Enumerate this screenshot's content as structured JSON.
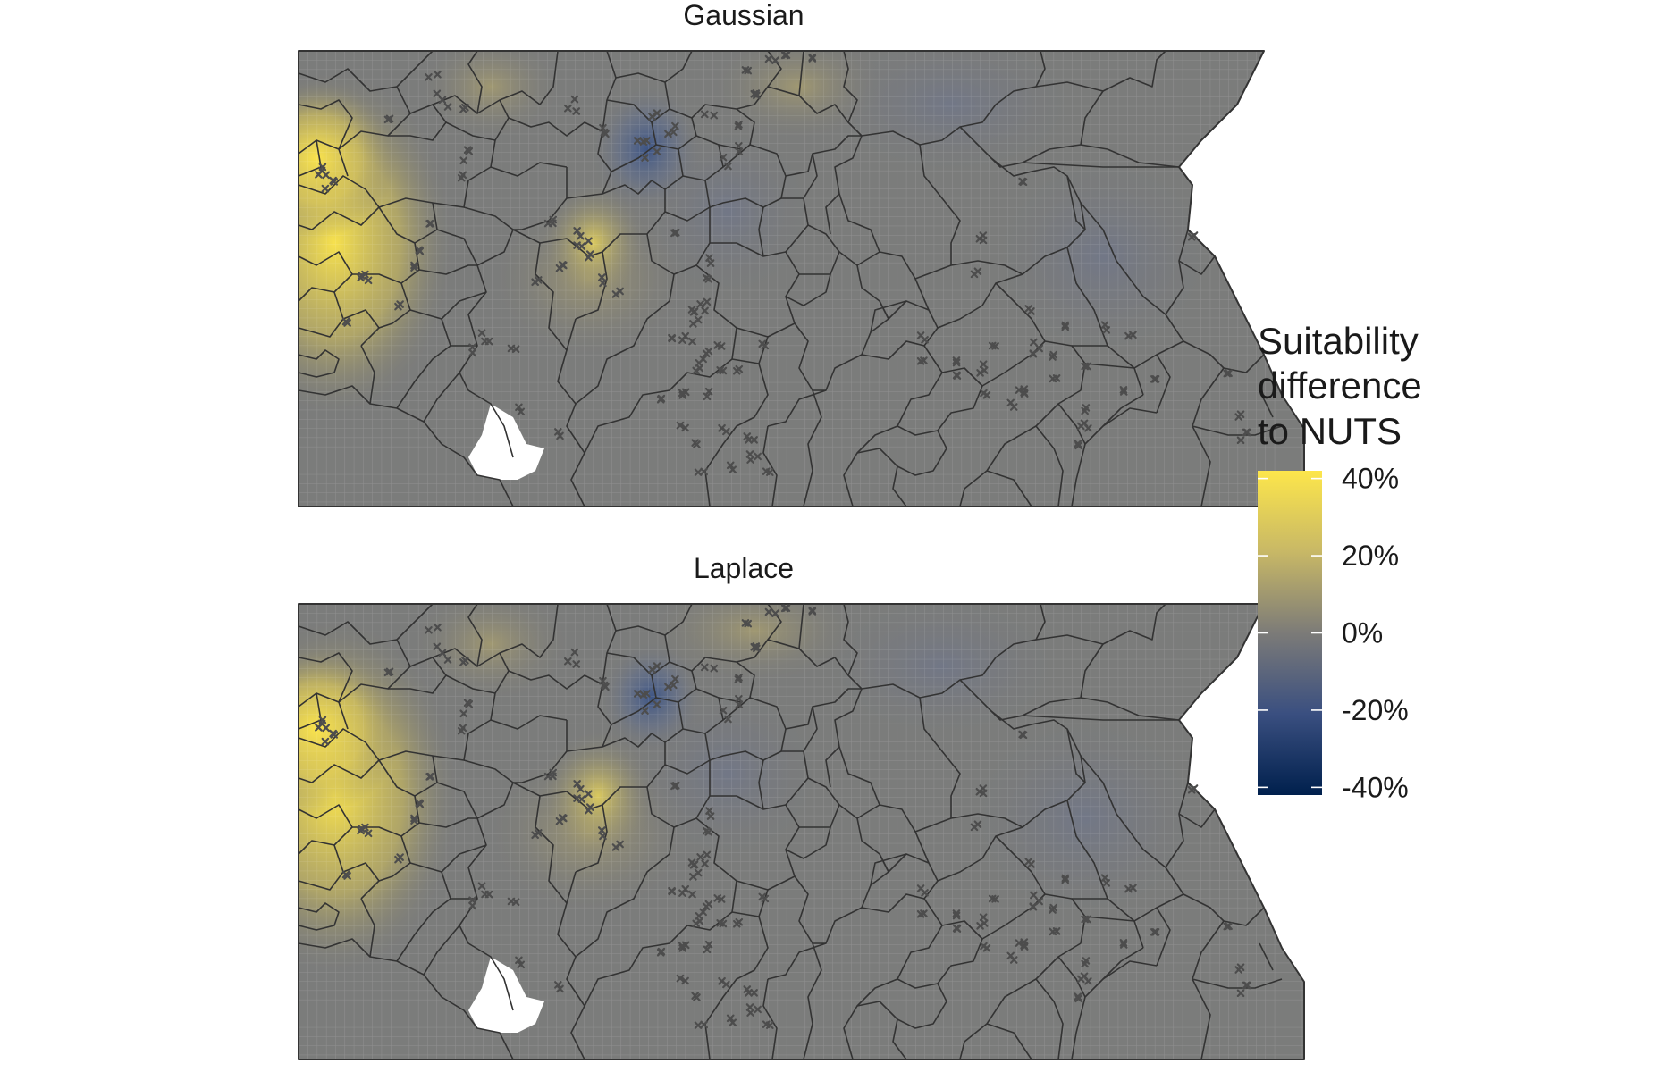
{
  "panels": [
    {
      "id": "gaussian",
      "title": "Gaussian"
    },
    {
      "id": "laplace",
      "title": "Laplace"
    }
  ],
  "legend": {
    "title_lines": [
      "Suitability",
      "difference",
      "to NUTS"
    ],
    "ticks": [
      {
        "value": 40,
        "label": "40%"
      },
      {
        "value": 20,
        "label": "20%"
      },
      {
        "value": 0,
        "label": "0%"
      },
      {
        "value": -20,
        "label": "-20%"
      },
      {
        "value": -40,
        "label": "-40%"
      }
    ],
    "color_stops": [
      {
        "value": 42,
        "color": "#fde64b"
      },
      {
        "value": 20,
        "color": "#c8b866"
      },
      {
        "value": 0,
        "color": "#7c7b78"
      },
      {
        "value": -20,
        "color": "#3a4f80"
      },
      {
        "value": -42,
        "color": "#00204d"
      }
    ]
  },
  "colors": {
    "background_region": "#7b7c7b",
    "border_line": "#333333",
    "marker": "#4d4d4d",
    "grid": "#ffffff"
  }
}
